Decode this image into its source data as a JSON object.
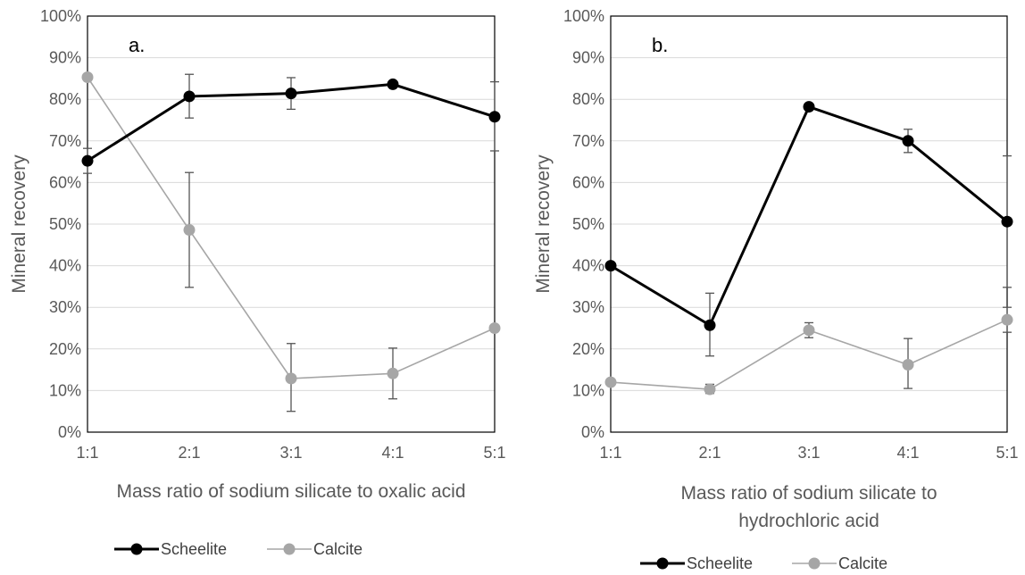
{
  "chart_data": [
    {
      "type": "line",
      "panel_label": "a.",
      "categories": [
        "1:1",
        "2:1",
        "3:1",
        "4:1",
        "5:1"
      ],
      "xlabel": "Mass ratio of sodium silicate to oxalic acid",
      "xlabel_lines": [
        "Mass ratio of sodium silicate to oxalic acid"
      ],
      "ylabel": "Mineral recovery",
      "ylim": [
        0,
        100
      ],
      "y_ticks": [
        "0%",
        "10%",
        "20%",
        "30%",
        "40%",
        "50%",
        "60%",
        "70%",
        "80%",
        "90%",
        "100%"
      ],
      "grid": "horizontal",
      "legend": "bottom",
      "series": [
        {
          "name": "Scheelite",
          "color": "#000000",
          "values": [
            65.2,
            80.7,
            81.4,
            83.6,
            75.8
          ],
          "error": [
            [
              62.2,
              68.2
            ],
            [
              75.5,
              86.0
            ],
            [
              77.6,
              85.2
            ],
            null,
            [
              67.6,
              84.2
            ]
          ]
        },
        {
          "name": "Calcite",
          "color": "#a6a6a6",
          "values": [
            85.3,
            48.6,
            12.9,
            14.1,
            25.0
          ],
          "error": [
            null,
            [
              34.8,
              62.4
            ],
            [
              5.0,
              21.3
            ],
            [
              8.0,
              20.2
            ],
            null
          ]
        }
      ]
    },
    {
      "type": "line",
      "panel_label": "b.",
      "categories": [
        "1:1",
        "2:1",
        "3:1",
        "4:1",
        "5:1"
      ],
      "xlabel": "Mass ratio of sodium silicate to hydrochloric acid",
      "xlabel_lines": [
        "Mass ratio of sodium silicate to",
        "hydrochloric acid"
      ],
      "ylabel": "Mineral recovery",
      "ylim": [
        0,
        100
      ],
      "y_ticks": [
        "0%",
        "10%",
        "20%",
        "30%",
        "40%",
        "50%",
        "60%",
        "70%",
        "80%",
        "90%",
        "100%"
      ],
      "grid": "horizontal",
      "legend": "bottom",
      "series": [
        {
          "name": "Scheelite",
          "color": "#000000",
          "values": [
            40.0,
            25.7,
            78.2,
            70.0,
            50.6
          ],
          "error": [
            null,
            [
              18.3,
              33.4
            ],
            null,
            [
              67.2,
              72.8
            ],
            [
              34.8,
              66.4
            ]
          ]
        },
        {
          "name": "Calcite",
          "color": "#a6a6a6",
          "values": [
            12.0,
            10.3,
            24.5,
            16.2,
            27.0
          ],
          "error": [
            null,
            [
              9.3,
              11.5
            ],
            [
              22.7,
              26.3
            ],
            [
              10.5,
              22.5
            ],
            [
              24.0,
              30.0
            ]
          ]
        }
      ]
    }
  ]
}
